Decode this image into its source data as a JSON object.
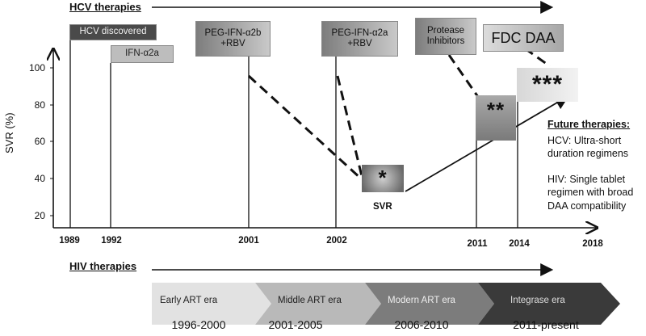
{
  "hcv_title": "HCV therapies",
  "hiv_title": "HIV therapies",
  "y_axis": {
    "label": "SVR (%)",
    "ticks": [
      "100",
      "80",
      "60",
      "40",
      "20"
    ]
  },
  "years": [
    "1989",
    "1992",
    "2001",
    "2002",
    "2011",
    "2014",
    "2018"
  ],
  "hcv_boxes": {
    "hcv_discovered": "HCV discovered",
    "ifn": "IFN-α2a",
    "peg2b_line1": "PEG-IFN-α2b",
    "peg2b_line2": "+RBV",
    "peg2a_line1": "PEG-IFN-α2a",
    "peg2a_line2": "+RBV",
    "protease_line1": "Protease",
    "protease_line2": "Inhibitors",
    "fdc": "FDC DAA"
  },
  "markers": {
    "one_star": "*",
    "two_star": "**",
    "three_star": "***",
    "svr": "SVR"
  },
  "future": {
    "heading": "Future therapies:",
    "hcv": "HCV: Ultra-short duration regimens",
    "hiv": "HIV: Single tablet regimen with broad DAA compatibility"
  },
  "hiv_eras": [
    {
      "label": "Early ART era",
      "range": "1996-2000"
    },
    {
      "label": "Middle ART era",
      "range": "2001-2005"
    },
    {
      "label": "Modern ART era",
      "range": "2006-2010"
    },
    {
      "label": "Integrase era",
      "range": "2011-present"
    }
  ]
}
